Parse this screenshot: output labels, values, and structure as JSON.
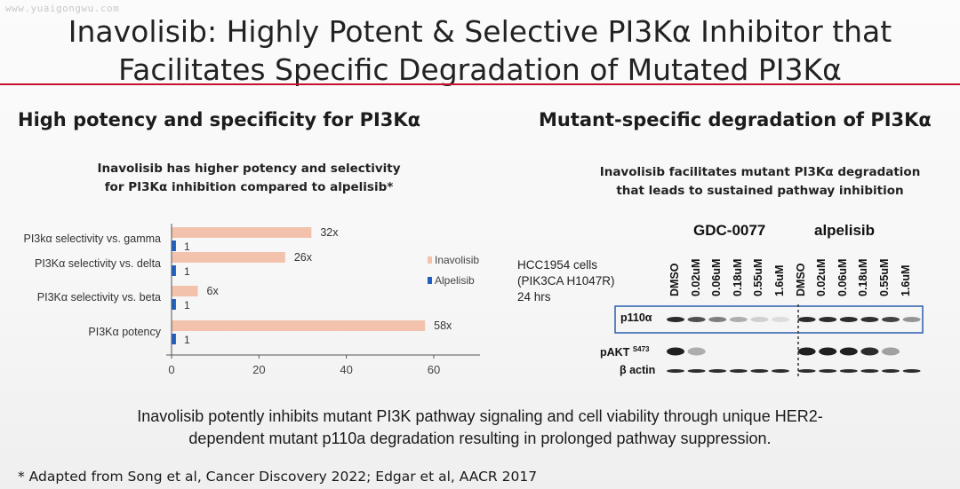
{
  "watermark": "www.yuaigongwu.com",
  "slide": {
    "title_line1": "Inavolisib: Highly Potent & Selective PI3Kα Inhibitor that",
    "title_line2": "Facilitates Specific Degradation of Mutated PI3Kα"
  },
  "left_panel": {
    "heading": "High potency and specificity for PI3Kα",
    "subheading_line1": "Inavolisib has higher potency and selectivity",
    "subheading_line2": "for PI3Kα inhibition compared to alpelisib*"
  },
  "chart_data": {
    "type": "bar",
    "orientation": "horizontal",
    "categories": [
      "PI3kα selectivity vs. gamma",
      "PI3Kα selectivity vs. delta",
      "PI3Kα selectivity vs. beta",
      "PI3Kα potency"
    ],
    "series": [
      {
        "name": "Inavolisib",
        "values": [
          32,
          26,
          6,
          58
        ],
        "labels": [
          "32x",
          "26x",
          "6x",
          "58x"
        ],
        "color": "#f2c2ad"
      },
      {
        "name": "Alpelisib",
        "values": [
          1,
          1,
          1,
          1
        ],
        "labels": [
          "1",
          "1",
          "1",
          "1"
        ],
        "color": "#1f5fbf"
      }
    ],
    "xlim": [
      0,
      60
    ],
    "xticks": [
      "0",
      "20",
      "40",
      "60"
    ],
    "legend_position": "right",
    "grid": false
  },
  "right_panel": {
    "heading": "Mutant-specific degradation of PI3Kα",
    "subheading_line1": "Inavolisib facilitates mutant PI3Kα degradation",
    "subheading_line2": "that leads to sustained pathway inhibition",
    "cell_line": "HCC1954 cells",
    "mutation": "(PIK3CA H1047R)",
    "duration": "24 hrs",
    "group1": "GDC-0077",
    "group2": "alpelisib",
    "lanes_group1": [
      "DMSO",
      "0.02uM",
      "0.06uM",
      "0.18uM",
      "0.55uM",
      "1.6uM"
    ],
    "lanes_group2": [
      "DMSO",
      "0.02uM",
      "0.06uM",
      "0.18uM",
      "0.55uM",
      "1.6uM"
    ],
    "blots": [
      {
        "label": "p110α",
        "intensity": [
          0.9,
          0.75,
          0.55,
          0.35,
          0.2,
          0.15,
          0.9,
          0.9,
          0.9,
          0.88,
          0.8,
          0.45
        ]
      },
      {
        "label": "pAKT",
        "superscript": "S473",
        "intensity": [
          0.95,
          0.35,
          0,
          0,
          0,
          0,
          0.95,
          0.95,
          0.95,
          0.9,
          0.4,
          0
        ]
      },
      {
        "label": "β actin",
        "intensity": [
          0.9,
          0.9,
          0.9,
          0.9,
          0.9,
          0.9,
          0.9,
          0.9,
          0.9,
          0.9,
          0.9,
          0.9
        ]
      }
    ]
  },
  "summary_line1": "Inavolisib potently inhibits mutant PI3K pathway signaling and cell viability through unique HER2-",
  "summary_line2": "dependent mutant p110a degradation resulting in prolonged pathway suppression.",
  "footnote": "* Adapted from Song et al, Cancer Discovery 2022; Edgar et al, AACR 2017"
}
